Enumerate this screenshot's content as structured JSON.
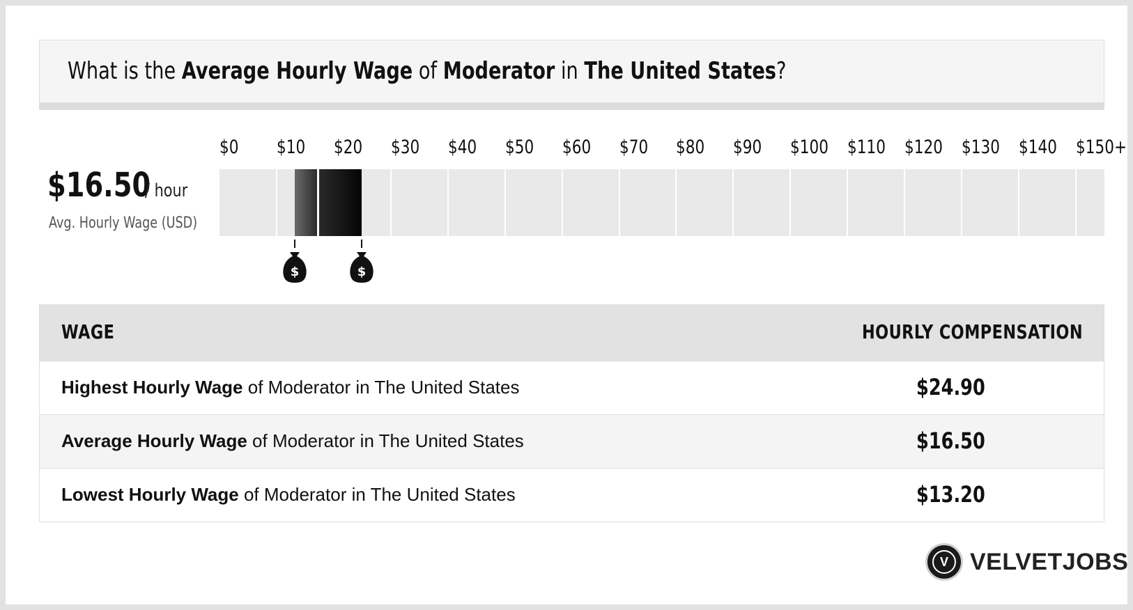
{
  "header": {
    "p1": "What is the ",
    "b1": "Average Hourly Wage",
    "p2": " of ",
    "b2": "Moderator",
    "p3": " in ",
    "b3": "The United States",
    "p4": "?"
  },
  "average": {
    "value": "$16.50",
    "unit": "/ hour",
    "caption": "Avg. Hourly Wage (USD)"
  },
  "chart_data": {
    "type": "bar",
    "tick_labels": [
      "$0",
      "$10",
      "$20",
      "$30",
      "$40",
      "$50",
      "$60",
      "$70",
      "$80",
      "$90",
      "$100",
      "$110",
      "$120",
      "$130",
      "$140",
      "$150+"
    ],
    "x_range": [
      0,
      150
    ],
    "low": 13.2,
    "average": 16.5,
    "high": 24.9,
    "colors": {
      "track": "#e9e9e9",
      "low_segment": "#4a4a4a",
      "high_segment": "#111111"
    },
    "markers": [
      "money-bag-icon",
      "money-bag-icon"
    ]
  },
  "table": {
    "headers": {
      "wage": "WAGE",
      "comp": "HOURLY COMPENSATION"
    },
    "rows": [
      {
        "bold": "Highest Hourly Wage",
        "rest": " of Moderator in The United States",
        "value": "$24.90"
      },
      {
        "bold": "Average Hourly Wage",
        "rest": " of Moderator in The United States",
        "value": "$16.50"
      },
      {
        "bold": "Lowest Hourly Wage",
        "rest": " of Moderator in The United States",
        "value": "$13.20"
      }
    ]
  },
  "logo": {
    "letter": "V",
    "text": "VELVETJOBS"
  }
}
